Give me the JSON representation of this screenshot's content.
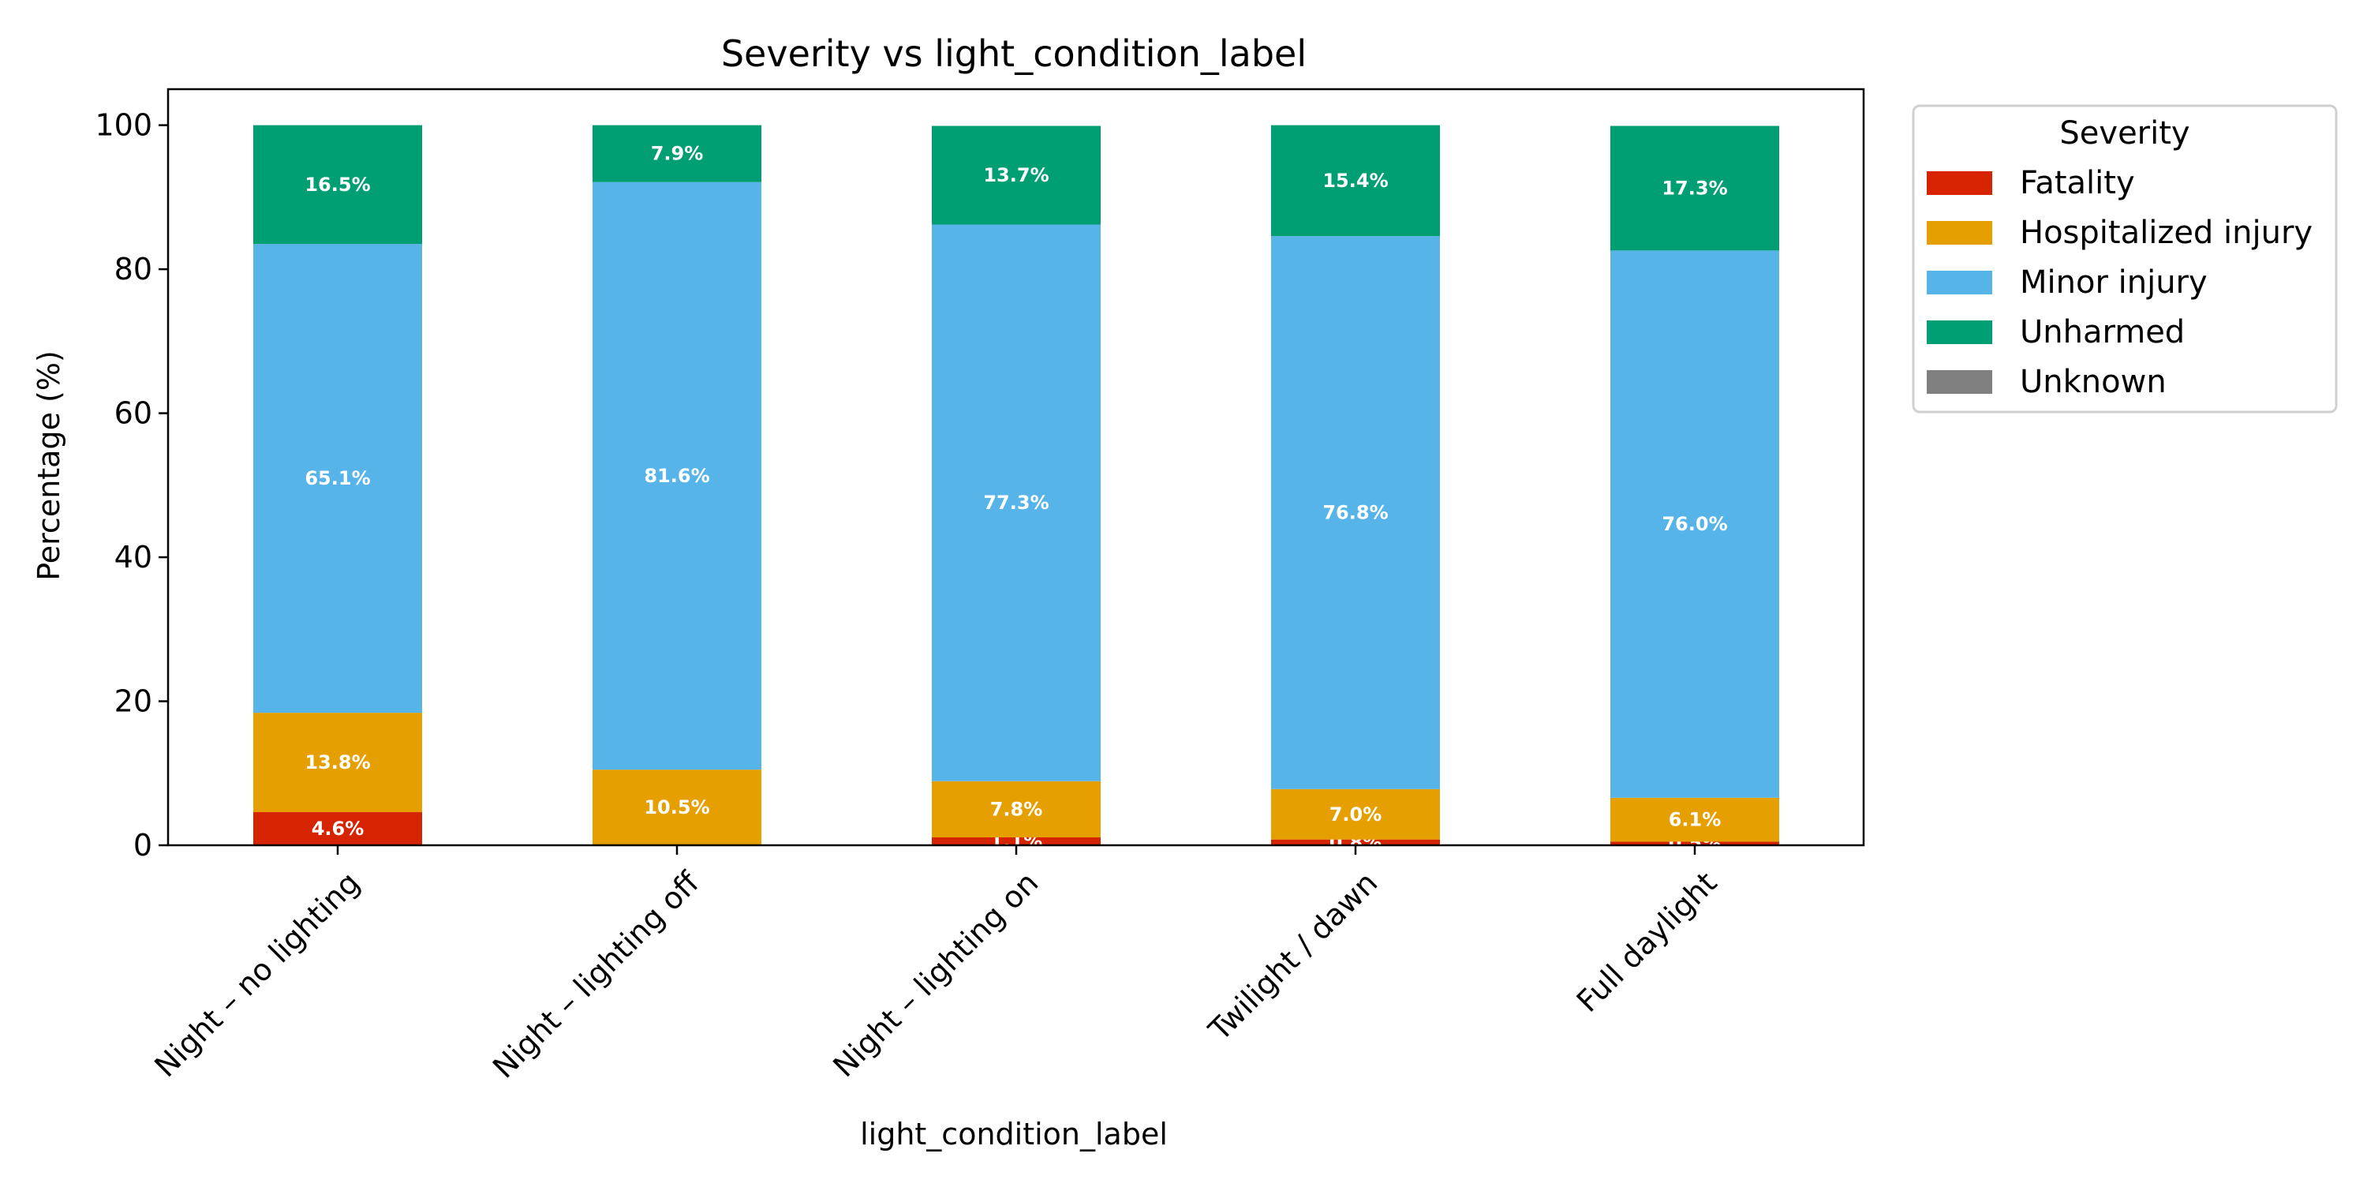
{
  "chart_data": {
    "type": "bar",
    "stacked": true,
    "title": "Severity vs light_condition_label",
    "xlabel": "light_condition_label",
    "ylabel": "Percentage (%)",
    "ylim": [
      0,
      105
    ],
    "yticks": [
      0,
      20,
      40,
      60,
      80,
      100
    ],
    "grid": false,
    "legend": {
      "title": "Severity",
      "placement": "outside-right-top"
    },
    "categories": [
      "Night – no lighting",
      "Night – lighting off",
      "Night – lighting on",
      "Twilight / dawn",
      "Full daylight"
    ],
    "series": [
      {
        "name": "Fatality",
        "color": "#d62400",
        "values": [
          4.6,
          0.0,
          1.1,
          0.8,
          0.5
        ],
        "labels": [
          "4.6%",
          "",
          "1.1%",
          "0.8%",
          "0.5%"
        ]
      },
      {
        "name": "Hospitalized injury",
        "color": "#e69f00",
        "values": [
          13.8,
          10.5,
          7.8,
          7.0,
          6.1
        ],
        "labels": [
          "13.8%",
          "10.5%",
          "7.8%",
          "7.0%",
          "6.1%"
        ]
      },
      {
        "name": "Minor injury",
        "color": "#56b4e9",
        "values": [
          65.1,
          81.6,
          77.3,
          76.8,
          76.0
        ],
        "labels": [
          "65.1%",
          "81.6%",
          "77.3%",
          "76.8%",
          "76.0%"
        ]
      },
      {
        "name": "Unharmed",
        "color": "#009e73",
        "values": [
          16.5,
          7.9,
          13.7,
          15.4,
          17.3
        ],
        "labels": [
          "16.5%",
          "7.9%",
          "13.7%",
          "15.4%",
          "17.3%"
        ]
      },
      {
        "name": "Unknown",
        "color": "#808080",
        "values": [
          0.0,
          0.0,
          0.0,
          0.0,
          0.0
        ],
        "labels": [
          "",
          "",
          "",
          "",
          ""
        ]
      }
    ]
  }
}
